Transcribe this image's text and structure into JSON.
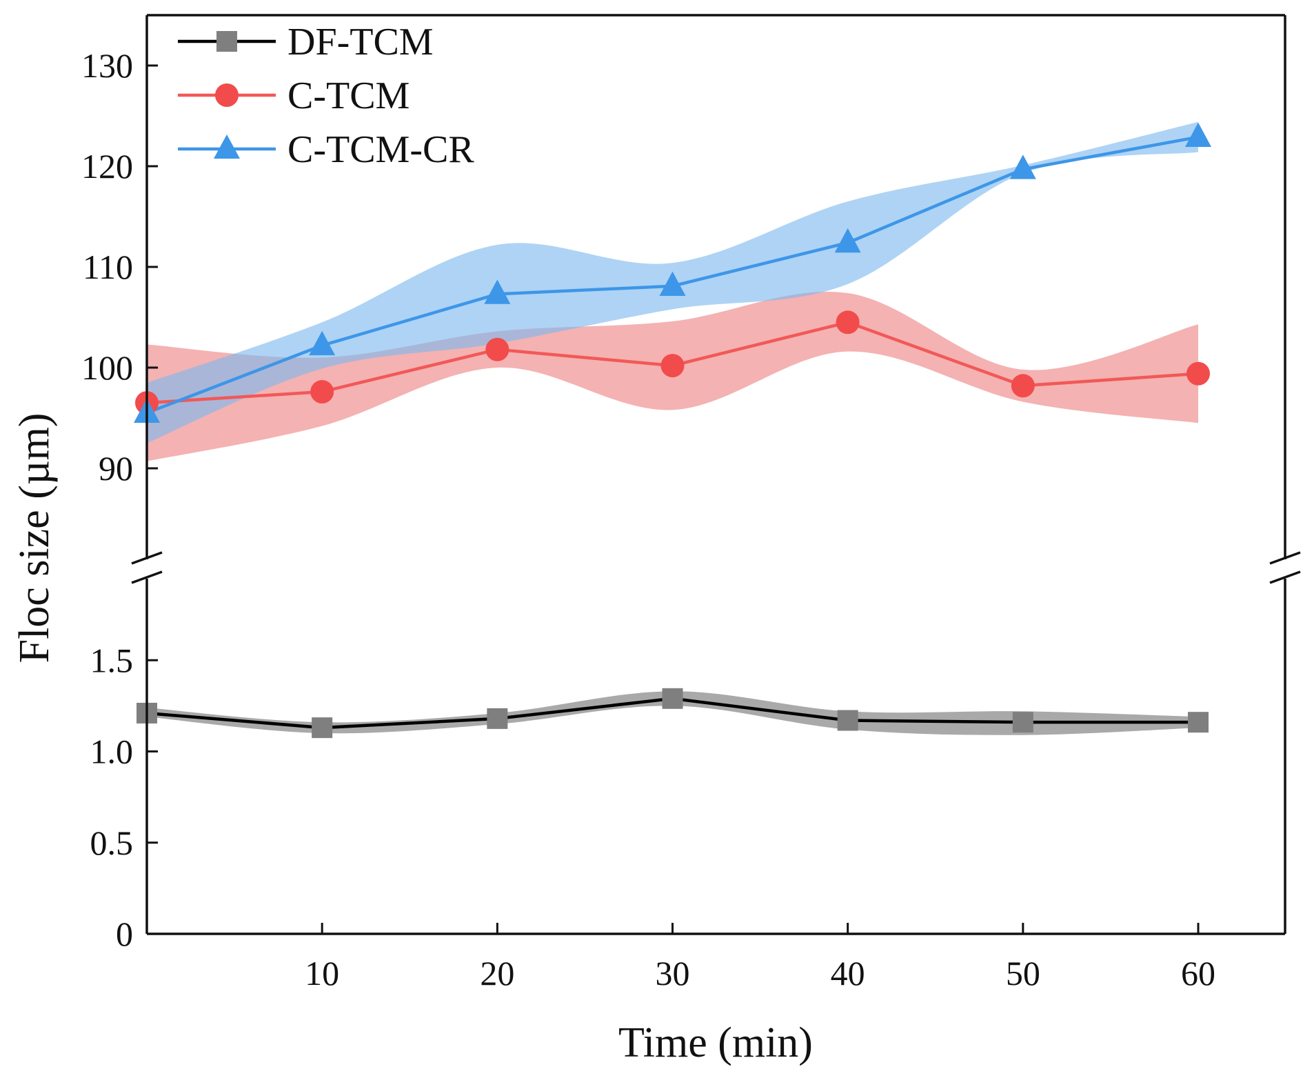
{
  "chart_data": {
    "type": "line",
    "title": "",
    "xlabel": "Time (min)",
    "ylabel": "Floc size (µm)",
    "x": [
      0,
      10,
      20,
      30,
      40,
      50,
      60
    ],
    "xlim": [
      0,
      65
    ],
    "x_ticks": [
      10,
      20,
      30,
      40,
      50,
      60
    ],
    "x_tick_labels": [
      "10",
      "20",
      "30",
      "40",
      "50",
      "60"
    ],
    "y_break": true,
    "y_upper": {
      "ylim": [
        80,
        135
      ],
      "ticks": [
        90,
        100,
        110,
        120,
        130
      ],
      "tick_labels": [
        "90",
        "100",
        "110",
        "120",
        "130"
      ]
    },
    "y_lower": {
      "ylim": [
        0,
        2.0
      ],
      "ticks": [
        0,
        0.5,
        1.0,
        1.5
      ],
      "tick_labels": [
        "0",
        "0.5",
        "1.0",
        "1.5"
      ]
    },
    "legend_position": "top-left",
    "series": [
      {
        "name": "DF-TCM",
        "panel": "lower",
        "values": [
          1.21,
          1.13,
          1.18,
          1.29,
          1.17,
          1.16,
          1.16
        ],
        "band_upper": [
          1.24,
          1.16,
          1.21,
          1.33,
          1.22,
          1.22,
          1.19
        ],
        "band_lower": [
          1.19,
          1.1,
          1.15,
          1.25,
          1.12,
          1.09,
          1.13
        ],
        "marker": "square",
        "line_color": "#000000",
        "marker_color": "#7f7f7f",
        "band_color": "#9a9a9a"
      },
      {
        "name": "C-TCM",
        "panel": "upper",
        "values": [
          96.5,
          97.6,
          101.8,
          100.2,
          104.5,
          98.2,
          99.4
        ],
        "band_upper": [
          102.3,
          101.0,
          103.6,
          104.6,
          107.4,
          99.8,
          104.3
        ],
        "band_lower": [
          90.7,
          94.2,
          100.0,
          95.8,
          101.6,
          96.6,
          94.5
        ],
        "marker": "circle",
        "line_color": "#f25858",
        "marker_color": "#f24b4b",
        "band_color": "#ee8282"
      },
      {
        "name": "C-TCM-CR",
        "panel": "upper",
        "values": [
          95.5,
          102.2,
          107.3,
          108.1,
          112.4,
          119.7,
          122.9
        ],
        "band_upper": [
          98.5,
          104.5,
          112.2,
          110.4,
          116.5,
          120.1,
          124.4
        ],
        "band_lower": [
          92.5,
          99.9,
          102.4,
          105.8,
          108.3,
          119.3,
          121.4
        ],
        "marker": "triangle",
        "line_color": "#3d96e8",
        "marker_color": "#3d96e8",
        "band_color": "#7db8ef"
      }
    ]
  }
}
